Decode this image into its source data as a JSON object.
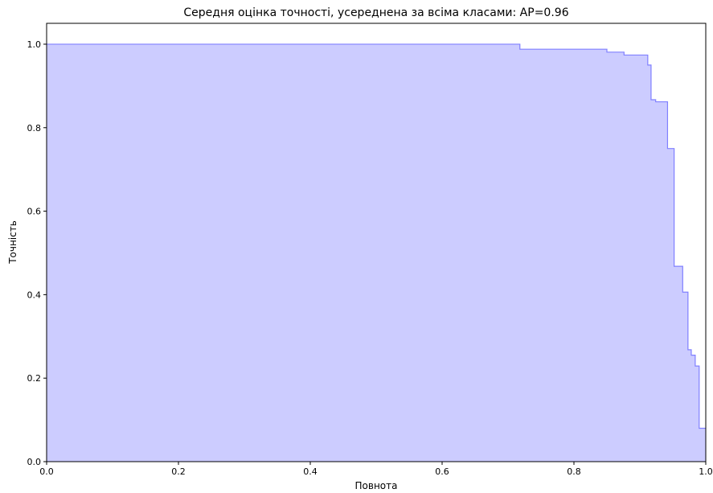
{
  "chart_data": {
    "type": "area",
    "title": "Середня оцінка точності, усереднена за всіма класами: AP=0.96",
    "xlabel": "Повнота",
    "ylabel": "Точність",
    "xlim": [
      0.0,
      1.0
    ],
    "ylim": [
      0.0,
      1.05
    ],
    "xticks": [
      "0.0",
      "0.2",
      "0.4",
      "0.6",
      "0.8",
      "1.0"
    ],
    "yticks": [
      "0.0",
      "0.2",
      "0.4",
      "0.6",
      "0.8",
      "1.0"
    ],
    "grid": false,
    "step": "post",
    "fill_color": "#ccccff",
    "line_color": "#8080ff",
    "series": [
      {
        "x": [
          0.0,
          0.718,
          0.85,
          0.876,
          0.912,
          0.917,
          0.924,
          0.942,
          0.952,
          0.965,
          0.973,
          0.978,
          0.984,
          0.99,
          1.0
        ],
        "y": [
          1.0,
          0.988,
          0.981,
          0.974,
          0.95,
          0.867,
          0.862,
          0.75,
          0.468,
          0.406,
          0.268,
          0.255,
          0.229,
          0.08,
          0.08
        ]
      }
    ]
  }
}
